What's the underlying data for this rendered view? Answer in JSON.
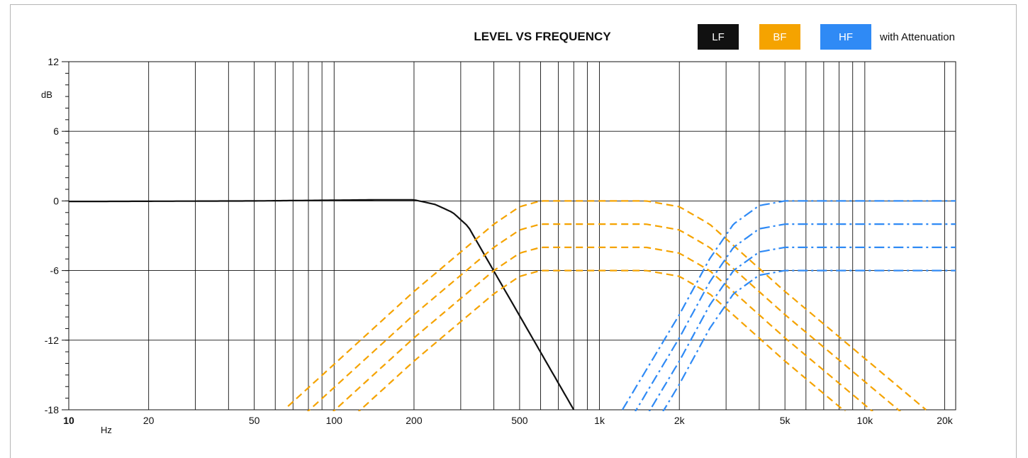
{
  "chart_data": {
    "type": "line",
    "title": "LEVEL VS FREQUENCY",
    "legend": {
      "placement": "top-right",
      "items": [
        {
          "label": "LF",
          "color": "#111111"
        },
        {
          "label": "BF",
          "color": "#f5a300"
        },
        {
          "label": "HF",
          "color": "#2f8af5"
        }
      ],
      "note": "with Attenuation"
    },
    "xlabel": "Hz",
    "ylabel": "dB",
    "x_scale": "log",
    "xlim": [
      10,
      22000
    ],
    "ylim": [
      -18,
      12
    ],
    "x_ticks": [
      {
        "value": 10,
        "label": "10",
        "bold": true
      },
      {
        "value": 20,
        "label": "20"
      },
      {
        "value": 50,
        "label": "50"
      },
      {
        "value": 100,
        "label": "100"
      },
      {
        "value": 200,
        "label": "200"
      },
      {
        "value": 500,
        "label": "500"
      },
      {
        "value": 1000,
        "label": "1k"
      },
      {
        "value": 2000,
        "label": "2k"
      },
      {
        "value": 5000,
        "label": "5k"
      },
      {
        "value": 10000,
        "label": "10k"
      },
      {
        "value": 20000,
        "label": "20k"
      }
    ],
    "y_ticks": [
      12,
      6,
      0,
      -6,
      -12,
      -18
    ],
    "grid": true,
    "series": [
      {
        "name": "LF",
        "color": "#111111",
        "dash": "solid",
        "points": [
          [
            10,
            -0.05
          ],
          [
            50,
            0.0
          ],
          [
            150,
            0.1
          ],
          [
            200,
            0.1
          ],
          [
            240,
            -0.3
          ],
          [
            280,
            -1.0
          ],
          [
            320,
            -2.2
          ],
          [
            800,
            -18
          ]
        ]
      },
      {
        "name": "BF",
        "color": "#f5a300",
        "dash": "dashed",
        "attenuation_steps": [
          0,
          -2,
          -4,
          -6
        ],
        "points": [
          [
            67,
            -17.7
          ],
          [
            200,
            -7.8
          ],
          [
            400,
            -2.0
          ],
          [
            500,
            -0.5
          ],
          [
            600,
            0.0
          ],
          [
            1500,
            0.0
          ],
          [
            2000,
            -0.5
          ],
          [
            2600,
            -2.0
          ],
          [
            5000,
            -7.8
          ],
          [
            17000,
            -18
          ]
        ]
      },
      {
        "name": "HF",
        "color": "#2f8af5",
        "dash": "dash-dot",
        "attenuation_steps": [
          0,
          -2,
          -4,
          -6
        ],
        "points": [
          [
            1220,
            -18
          ],
          [
            2000,
            -9.8
          ],
          [
            2600,
            -5.0
          ],
          [
            3200,
            -2.0
          ],
          [
            4000,
            -0.4
          ],
          [
            5000,
            0.0
          ],
          [
            22000,
            0.0
          ]
        ]
      }
    ]
  }
}
